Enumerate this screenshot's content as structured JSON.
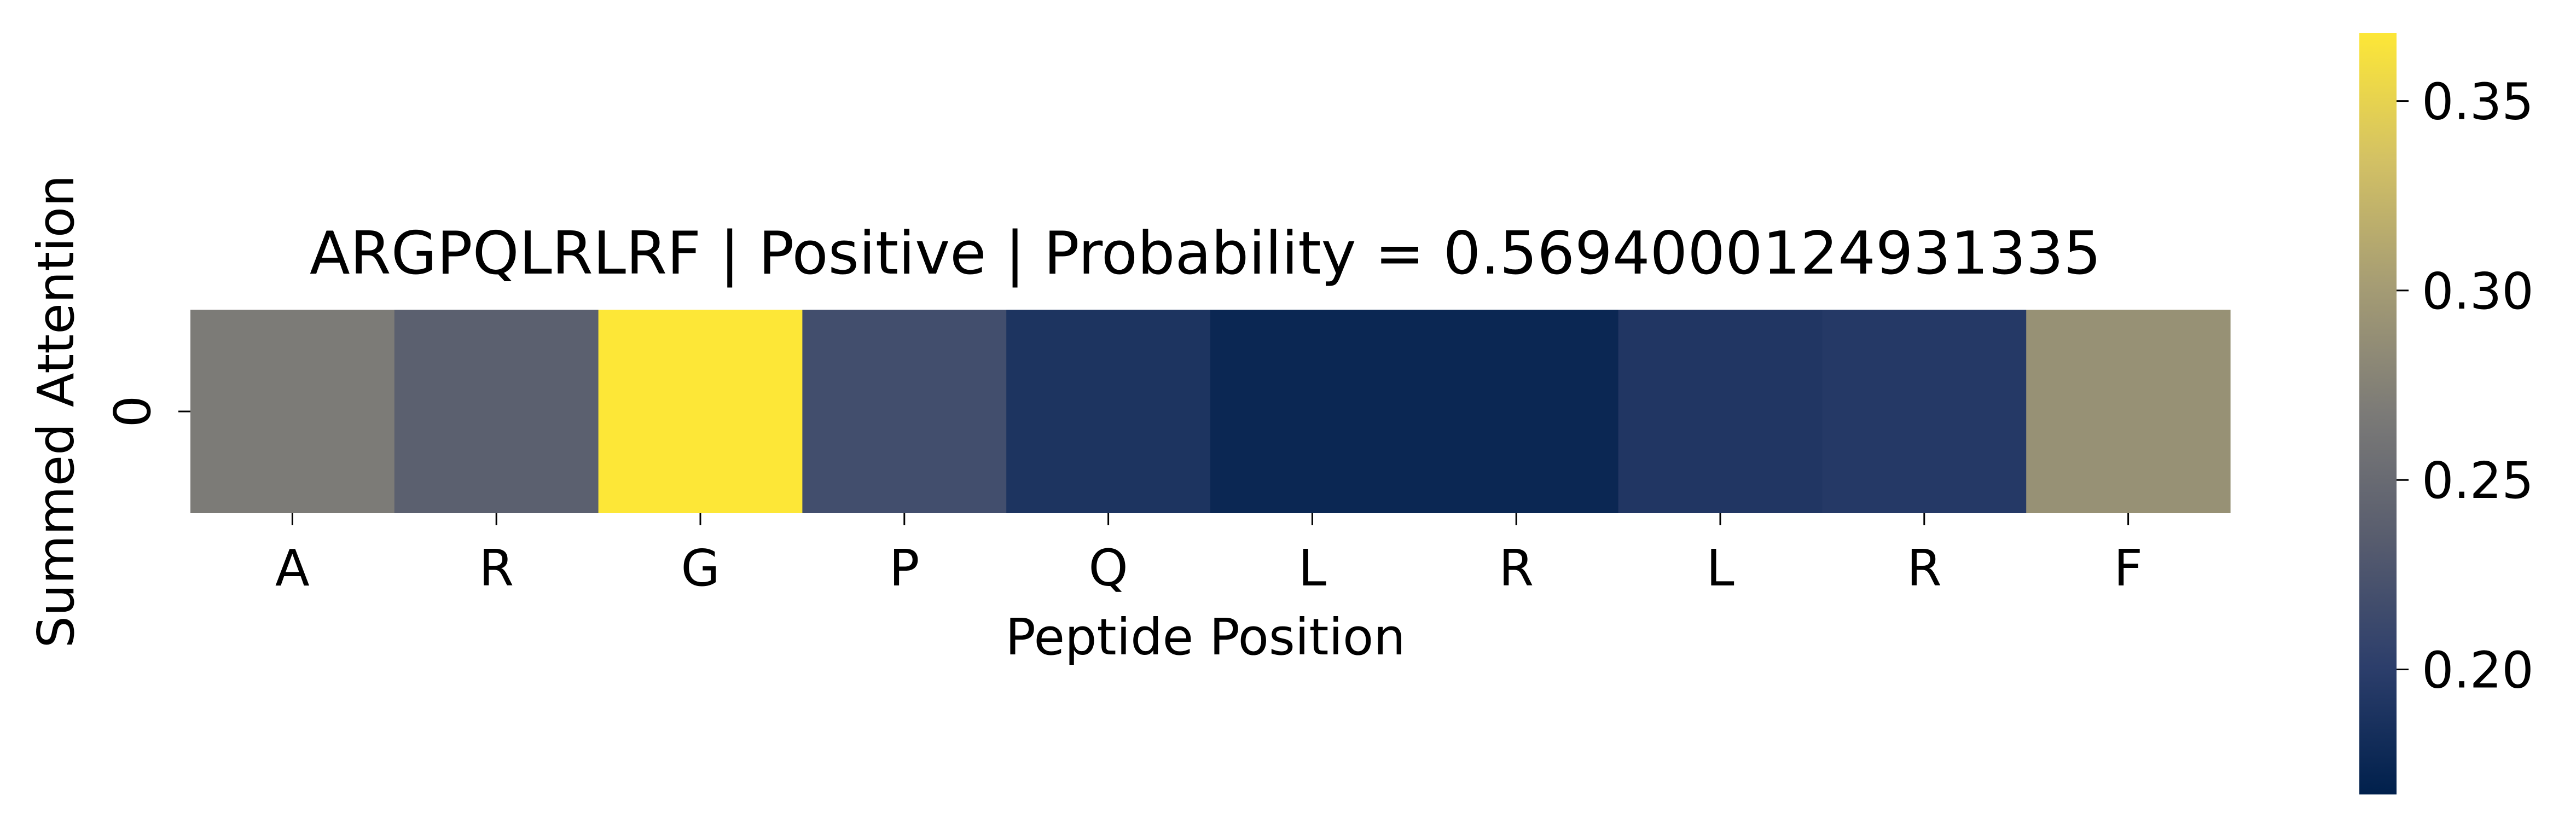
{
  "chart_data": {
    "type": "heatmap",
    "title": "ARGPQLRLRF | Positive | Probability = 0.5694000124931335",
    "xlabel": "Peptide Position",
    "ylabel": "Summed Attention",
    "x_tick_labels": [
      "A",
      "R",
      "G",
      "P",
      "Q",
      "L",
      "R",
      "L",
      "R",
      "F"
    ],
    "y_tick_labels": [
      "0"
    ],
    "values": [
      [
        0.268,
        0.238,
        0.368,
        0.218,
        0.189,
        0.175,
        0.175,
        0.192,
        0.195,
        0.29
      ]
    ],
    "colormap": "cividis",
    "colormap_stops": [
      "#00204c",
      "#2c3e6b",
      "#575c6e",
      "#7b7a77",
      "#a59c74",
      "#d3c164",
      "#fde737"
    ],
    "vmin": 0.167,
    "vmax": 0.368,
    "colorbar": {
      "ticks": [
        0.2,
        0.25,
        0.3,
        0.35
      ],
      "tick_labels": [
        "0.20",
        "0.25",
        "0.30",
        "0.35"
      ]
    }
  }
}
